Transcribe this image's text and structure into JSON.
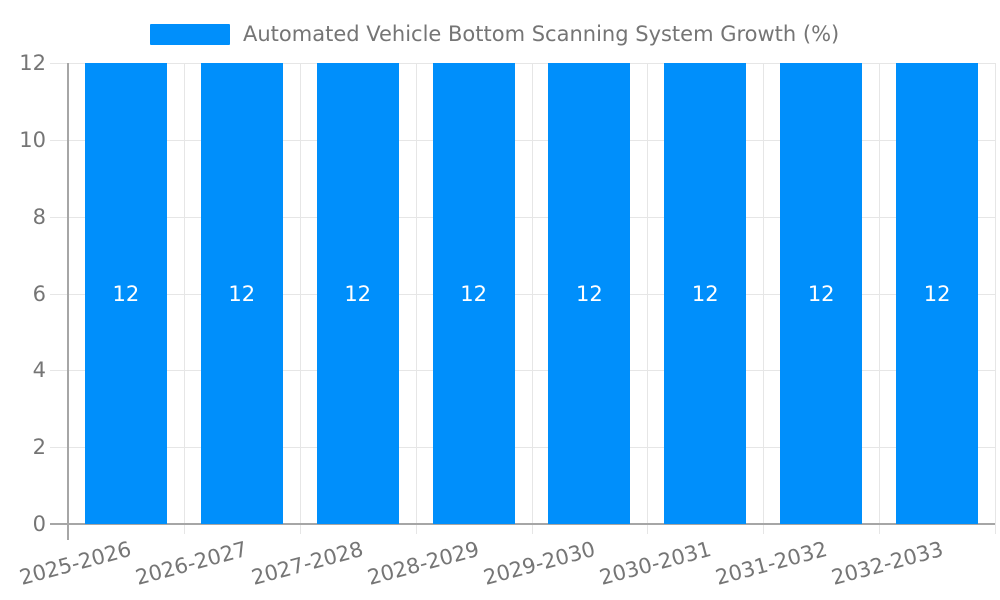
{
  "legend": {
    "label": "Automated Vehicle Bottom Scanning System Growth (%)"
  },
  "chart_data": {
    "type": "bar",
    "title": "Automated Vehicle Bottom Scanning System Growth (%)",
    "categories": [
      "2025-2026",
      "2026-2027",
      "2027-2028",
      "2028-2029",
      "2029-2030",
      "2030-2031",
      "2031-2032",
      "2032-2033"
    ],
    "values": [
      12,
      12,
      12,
      12,
      12,
      12,
      12,
      12
    ],
    "xlabel": "",
    "ylabel": "",
    "ylim": [
      0,
      12
    ],
    "yticks": [
      0,
      2,
      4,
      6,
      8,
      10,
      12
    ],
    "grid": true,
    "legend_position": "top",
    "bar_value_labels_position": "center"
  },
  "colors": {
    "bar": "#008FFB",
    "bar_label": "#FFFFFF",
    "tick_text": "#757575",
    "grid_line": "#E6E6E6",
    "axis_line": "#A6A6A6"
  }
}
